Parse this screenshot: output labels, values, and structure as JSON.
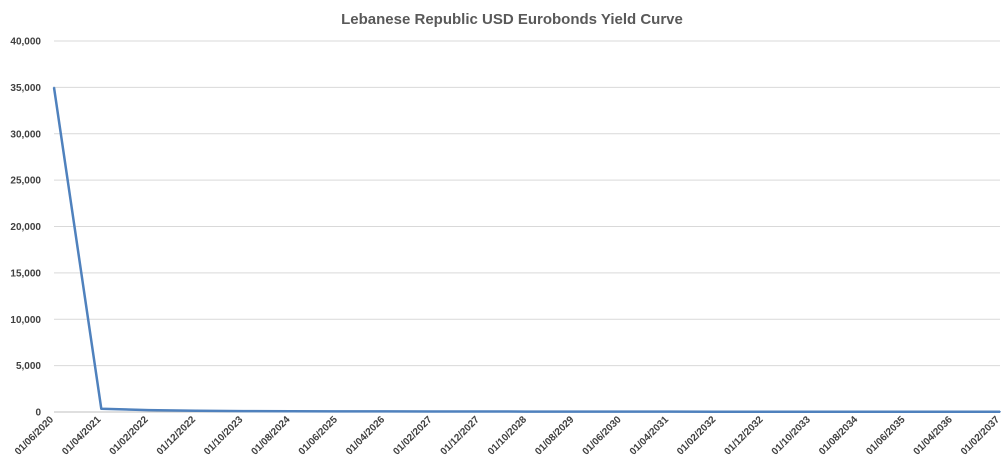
{
  "chart_data": {
    "type": "line",
    "title": "Lebanese Republic USD Eurobonds Yield Curve",
    "xlabel": "",
    "ylabel": "",
    "ylim": [
      0,
      40000
    ],
    "y_ticks": [
      "0",
      "5,000",
      "10,000",
      "15,000",
      "20,000",
      "25,000",
      "30,000",
      "35,000",
      "40,000"
    ],
    "x_ticks": [
      "01/06/2020",
      "01/04/2021",
      "01/02/2022",
      "01/12/2022",
      "01/10/2023",
      "01/08/2024",
      "01/06/2025",
      "01/04/2026",
      "01/02/2027",
      "01/12/2027",
      "01/10/2028",
      "01/08/2029",
      "01/06/2030",
      "01/04/2031",
      "01/02/2032",
      "01/12/2032",
      "01/10/2033",
      "01/08/2034",
      "01/06/2035",
      "01/04/2036",
      "01/02/2037"
    ],
    "grid": true,
    "legend": "none",
    "series_color": "#4f81bd",
    "series": [
      {
        "points": [
          {
            "x": "01/06/2020",
            "y": 35000
          },
          {
            "x": "01/04/2021",
            "y": 350
          },
          {
            "x": "01/02/2022",
            "y": 200
          },
          {
            "x": "01/12/2022",
            "y": 130
          },
          {
            "x": "01/10/2023",
            "y": 100
          },
          {
            "x": "01/08/2024",
            "y": 80
          },
          {
            "x": "01/06/2025",
            "y": 70
          },
          {
            "x": "01/04/2026",
            "y": 60
          },
          {
            "x": "01/02/2027",
            "y": 55
          },
          {
            "x": "01/12/2027",
            "y": 50
          },
          {
            "x": "01/10/2028",
            "y": 45
          },
          {
            "x": "01/08/2029",
            "y": 42
          },
          {
            "x": "01/06/2030",
            "y": 40
          },
          {
            "x": "01/04/2031",
            "y": 38
          },
          {
            "x": "01/02/2032",
            "y": 36
          },
          {
            "x": "01/12/2032",
            "y": 35
          },
          {
            "x": "01/10/2033",
            "y": 34
          },
          {
            "x": "01/08/2034",
            "y": 33
          },
          {
            "x": "01/06/2035",
            "y": 32
          },
          {
            "x": "01/04/2036",
            "y": 31
          },
          {
            "x": "01/02/2037",
            "y": 30
          }
        ]
      }
    ]
  }
}
